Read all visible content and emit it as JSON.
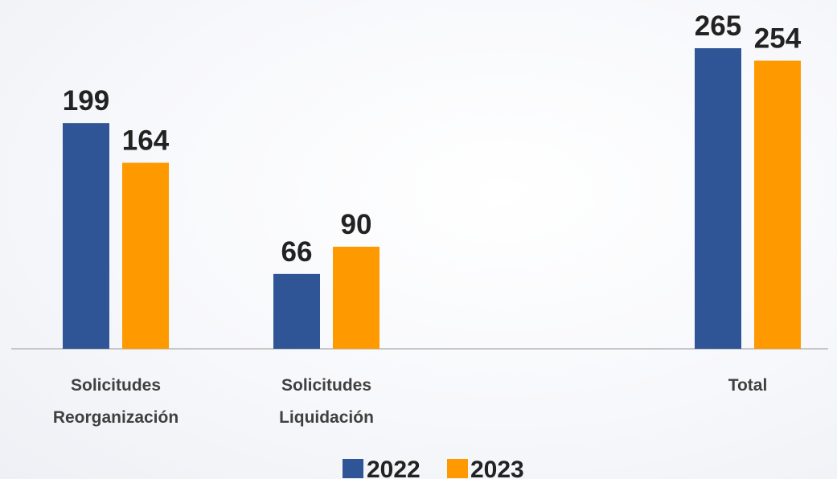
{
  "chart_data": {
    "type": "bar",
    "categories": [
      [
        "Solicitudes",
        "Reorganización"
      ],
      [
        "Solicitudes",
        "Liquidación"
      ],
      [
        "Total"
      ]
    ],
    "series": [
      {
        "name": "2022",
        "values": [
          199,
          66,
          265
        ],
        "color": "#2F5597"
      },
      {
        "name": "2023",
        "values": [
          164,
          90,
          254
        ],
        "color": "#FF9900"
      }
    ],
    "title": "",
    "xlabel": "",
    "ylabel": "",
    "ylim": [
      0,
      265
    ],
    "grid": false,
    "legend": "bottom"
  }
}
